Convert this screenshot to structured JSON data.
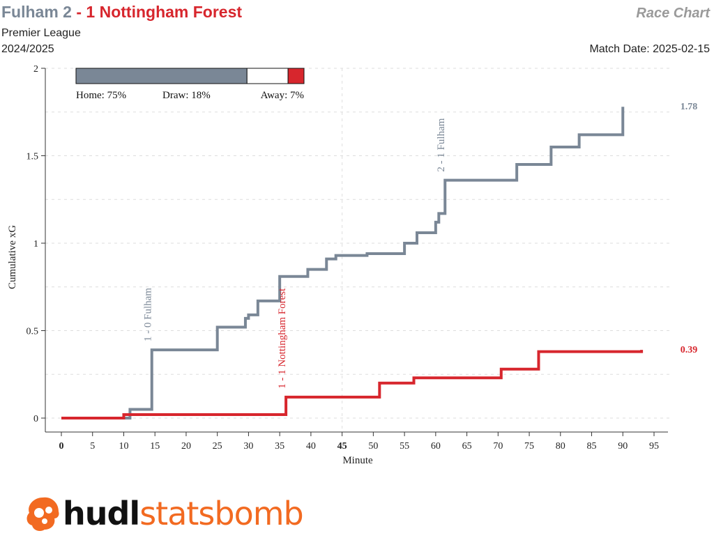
{
  "header": {
    "home_team": "Fulham",
    "home_score": "2",
    "separator": "-",
    "away_score": "1",
    "away_team": "Nottingham Forest",
    "competition": "Premier League",
    "season": "2024/2025",
    "chart_label": "Race Chart",
    "match_date": "Match Date: 2025-02-15"
  },
  "colors": {
    "home": "#7a8796",
    "away": "#d7262d",
    "draw": "#ffffff",
    "grid": "#dddddd",
    "axis": "#333333",
    "brand_orange": "#f26a21"
  },
  "logo": {
    "word_a": "hudl",
    "word_b": "statsbomb",
    "icon": "statsbomb-logo-icon"
  },
  "chart_data": {
    "type": "line",
    "xlabel": "Minute",
    "ylabel": "Cumulative xG",
    "xlim": [
      0,
      95
    ],
    "ylim": [
      0,
      2
    ],
    "xticks": [
      0,
      5,
      10,
      15,
      20,
      25,
      30,
      35,
      40,
      45,
      50,
      55,
      60,
      65,
      70,
      75,
      80,
      85,
      90,
      95
    ],
    "yticks": [
      0,
      0.5,
      1,
      1.5,
      2
    ],
    "ytick_labels": [
      "0",
      "0.5",
      "1",
      "1.5",
      "2"
    ],
    "grid": "dashed",
    "win_probability": {
      "home": 75,
      "draw": 18,
      "away": 7,
      "home_label": "Home: 75%",
      "draw_label": "Draw: 18%",
      "away_label": "Away: 7%"
    },
    "series": [
      {
        "name": "Fulham",
        "side": "home",
        "final_label": "1.78",
        "steps": [
          [
            0,
            0
          ],
          [
            11,
            0.05
          ],
          [
            14.5,
            0.39
          ],
          [
            25,
            0.52
          ],
          [
            29.5,
            0.57
          ],
          [
            30,
            0.59
          ],
          [
            31.5,
            0.67
          ],
          [
            35,
            0.81
          ],
          [
            39.5,
            0.85
          ],
          [
            42.5,
            0.91
          ],
          [
            44,
            0.93
          ],
          [
            49,
            0.94
          ],
          [
            55,
            1.0
          ],
          [
            57,
            1.06
          ],
          [
            60,
            1.12
          ],
          [
            60.5,
            1.17
          ],
          [
            61.5,
            1.36
          ],
          [
            73,
            1.45
          ],
          [
            78.5,
            1.55
          ],
          [
            83,
            1.62
          ],
          [
            90,
            1.78
          ]
        ],
        "end_minute": 90
      },
      {
        "name": "Nottingham Forest",
        "side": "away",
        "final_label": "0.39",
        "steps": [
          [
            0,
            0
          ],
          [
            10,
            0.02
          ],
          [
            36,
            0.12
          ],
          [
            51,
            0.2
          ],
          [
            56.5,
            0.23
          ],
          [
            70.5,
            0.28
          ],
          [
            76.5,
            0.38
          ],
          [
            93,
            0.39
          ]
        ],
        "end_minute": 93
      }
    ],
    "annotations": [
      {
        "text": "1 - 0 Fulham",
        "minute": 14.5,
        "side": "home"
      },
      {
        "text": "1 - 1 Nottingham Forest",
        "minute": 36,
        "side": "away"
      },
      {
        "text": "2 - 1 Fulham",
        "minute": 61.5,
        "side": "home"
      }
    ]
  }
}
